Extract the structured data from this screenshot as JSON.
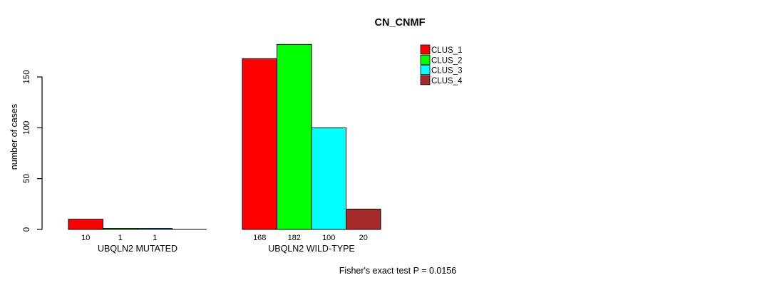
{
  "chart_data": {
    "type": "bar",
    "title": "CN_CNMF",
    "ylabel": "number of cases",
    "xlabel": "",
    "yticks": [
      0,
      50,
      100,
      150
    ],
    "ylim": [
      0,
      190
    ],
    "grid": false,
    "categories": [
      "UBQLN2 MUTATED",
      "UBQLN2 WILD-TYPE"
    ],
    "series": [
      {
        "name": "CLUS_1",
        "color": "#ff0000",
        "values": [
          10,
          168
        ]
      },
      {
        "name": "CLUS_2",
        "color": "#00ff00",
        "values": [
          1,
          182
        ]
      },
      {
        "name": "CLUS_3",
        "color": "#00ffff",
        "values": [
          1,
          100
        ]
      },
      {
        "name": "CLUS_4",
        "color": "#a52a2a",
        "values": [
          0,
          20
        ]
      }
    ],
    "bar_value_labels": [
      "10",
      "1",
      "1",
      "",
      "168",
      "182",
      "100",
      "20"
    ],
    "legend": {
      "position": "top-right",
      "entries": [
        "CLUS_1",
        "CLUS_2",
        "CLUS_3",
        "CLUS_4"
      ]
    },
    "annotation": "Fisher's exact test P = 0.0156",
    "colors": {
      "axis": "#000000",
      "bar_border": "#000000",
      "background": "#ffffff",
      "text": "#000000"
    }
  }
}
